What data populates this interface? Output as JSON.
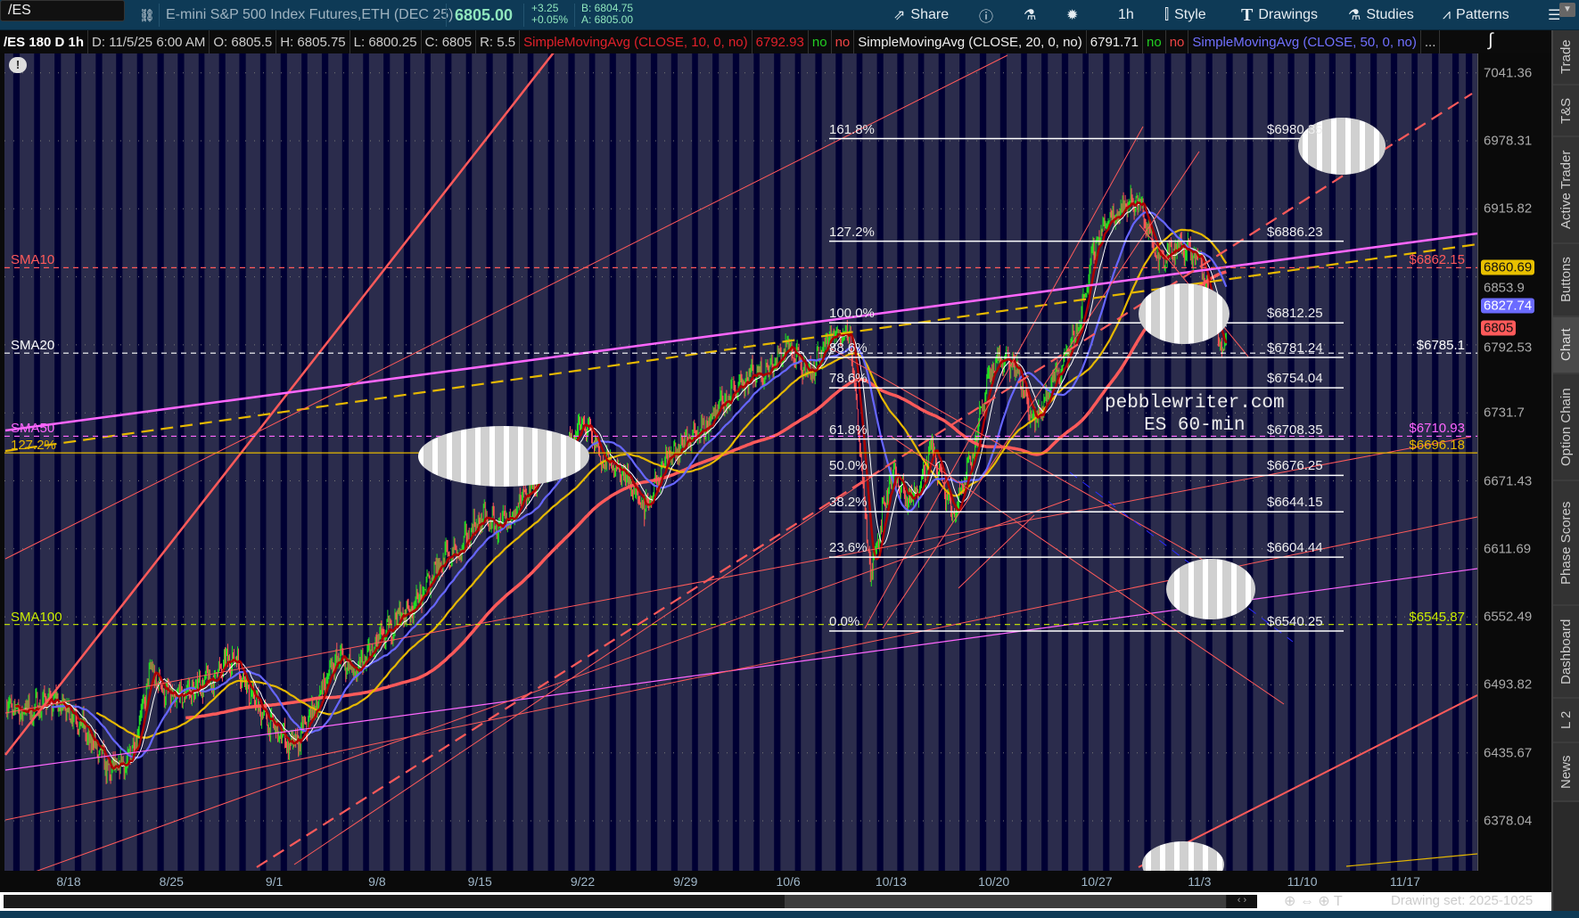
{
  "toolbar": {
    "symbol": "/ES",
    "description": "E-mini S&P 500 Index Futures,ETH (DEC 25)",
    "last": "6805.00",
    "change": "+3.25",
    "change_pct": "+0.05%",
    "bid": "B: 6804.75",
    "ask": "A: 6805.00",
    "share": "Share",
    "timeframe": "1h",
    "style": "Style",
    "drawings": "Drawings",
    "studies": "Studies",
    "patterns": "Patterns"
  },
  "infobar": {
    "title": "/ES 180 D 1h",
    "date": "D: 11/5/25 6:00 AM",
    "open": "O: 6805.5",
    "high": "H: 6805.75",
    "low": "L: 6800.25",
    "close": "C: 6805",
    "range": "R: 5.5",
    "sma10": "SimpleMovingAvg (CLOSE, 10, 0, no)",
    "sma10_val": "6792.93",
    "sma20": "SimpleMovingAvg (CLOSE, 20, 0, no)",
    "sma20_val": "6791.71",
    "sma50": "SimpleMovingAvg (CLOSE, 50, 0, no)",
    "no": "no",
    "more": "..."
  },
  "price_axis": {
    "labels": [
      "7041.36",
      "6978.31",
      "6915.82",
      "6853.9",
      "6792.53",
      "6731.7",
      "6671.43",
      "6611.69",
      "6552.49",
      "6493.82",
      "6435.67",
      "6378.04"
    ],
    "badges": [
      {
        "text": "6860.69",
        "price": 6860.69,
        "color": "#e8c000"
      },
      {
        "text": "6827.74",
        "price": 6827.74,
        "color": "#6b6bff"
      },
      {
        "text": "6805",
        "price": 6805,
        "color": "#ff5a5a"
      }
    ],
    "scale": "log"
  },
  "date_axis": [
    "8/18",
    "8/25",
    "9/1",
    "9/8",
    "9/15",
    "9/22",
    "9/29",
    "10/6",
    "10/13",
    "10/20",
    "10/27",
    "11/3",
    "11/10",
    "11/17"
  ],
  "side_tabs": [
    "Trade",
    "T&S",
    "Active Trader",
    "Buttons",
    "Chart",
    "Option Chain",
    "Phase Scores",
    "Dashboard",
    "L 2",
    "News"
  ],
  "selected_tab": "Chart",
  "drawing_set": "Drawing set: 2025-1025",
  "watermark": [
    "pebblewriter.com",
    "ES 60-min"
  ],
  "fib_levels": [
    {
      "pct": "161.8%",
      "label": "$6980.35",
      "price": 6980.35
    },
    {
      "pct": "127.2%",
      "label": "$6886.23",
      "price": 6886.23
    },
    {
      "pct": "100.0%",
      "label": "$6812.25",
      "price": 6812.25
    },
    {
      "pct": "88.6%",
      "label": "$6781.24",
      "price": 6781.24
    },
    {
      "pct": "78.6%",
      "label": "$6754.04",
      "price": 6754.04
    },
    {
      "pct": "61.8%",
      "label": "$6708.35",
      "price": 6708.35
    },
    {
      "pct": "50.0%",
      "label": "$6676.25",
      "price": 6676.25
    },
    {
      "pct": "38.2%",
      "label": "$6644.15",
      "price": 6644.15
    },
    {
      "pct": "23.6%",
      "label": "$6604.44",
      "price": 6604.44
    },
    {
      "pct": "0.0%",
      "label": "$6540.25",
      "price": 6540.25
    }
  ],
  "hlines": [
    {
      "left": "SMA10",
      "right": "$6862.15",
      "price": 6862.15,
      "color": "#ff5a5a",
      "dash": true
    },
    {
      "left": "SMA20",
      "right": "$6785.1",
      "price": 6785.1,
      "color": "#ffffff",
      "dash": true
    },
    {
      "left": "SMA50",
      "right": "$6710.93",
      "price": 6710.93,
      "color": "#ff66ff",
      "dash": true
    },
    {
      "left": "127.2%",
      "right": "$6696.18",
      "price": 6696.18,
      "color": "#e6b800",
      "dash": false
    },
    {
      "left": "SMA100",
      "right": "$6545.87",
      "price": 6545.87,
      "color": "#ccee00",
      "dash": true
    }
  ],
  "colors": {
    "up": "#22dd22",
    "down": "#ff5555",
    "sma10": "#aa0000",
    "sma20": "#ffffff",
    "sma50": "#6666ff",
    "sma100": "#e6b800",
    "sma200": "#ff5a5a"
  },
  "chart_data": {
    "type": "candlestick",
    "interval": "1h",
    "scale": "log",
    "daily_close": [
      [
        "8/13",
        6475
      ],
      [
        "8/14",
        6470
      ],
      [
        "8/15",
        6480
      ],
      [
        "8/18",
        6475
      ],
      [
        "8/19",
        6450
      ],
      [
        "8/20",
        6420
      ],
      [
        "8/21",
        6430
      ],
      [
        "8/22",
        6505
      ],
      [
        "8/25",
        6480
      ],
      [
        "8/26",
        6490
      ],
      [
        "8/27",
        6500
      ],
      [
        "8/28",
        6520
      ],
      [
        "8/29",
        6480
      ],
      [
        "9/1",
        6455
      ],
      [
        "9/2",
        6440
      ],
      [
        "9/3",
        6475
      ],
      [
        "9/4",
        6520
      ],
      [
        "9/5",
        6505
      ],
      [
        "9/8",
        6530
      ],
      [
        "9/9",
        6550
      ],
      [
        "9/10",
        6565
      ],
      [
        "9/11",
        6600
      ],
      [
        "9/12",
        6610
      ],
      [
        "9/15",
        6640
      ],
      [
        "9/16",
        6630
      ],
      [
        "9/17",
        6650
      ],
      [
        "9/18",
        6680
      ],
      [
        "9/19",
        6690
      ],
      [
        "9/22",
        6725
      ],
      [
        "9/23",
        6690
      ],
      [
        "9/24",
        6680
      ],
      [
        "9/25",
        6645
      ],
      [
        "9/26",
        6690
      ],
      [
        "9/29",
        6705
      ],
      [
        "9/30",
        6720
      ],
      [
        "10/1",
        6745
      ],
      [
        "10/2",
        6765
      ],
      [
        "10/3",
        6770
      ],
      [
        "10/6",
        6790
      ],
      [
        "10/7",
        6765
      ],
      [
        "10/8",
        6800
      ],
      [
        "10/9",
        6805
      ],
      [
        "10/10",
        6590
      ],
      [
        "10/13",
        6680
      ],
      [
        "10/14",
        6650
      ],
      [
        "10/15",
        6700
      ],
      [
        "10/16",
        6640
      ],
      [
        "10/17",
        6700
      ],
      [
        "10/20",
        6780
      ],
      [
        "10/21",
        6775
      ],
      [
        "10/22",
        6720
      ],
      [
        "10/23",
        6765
      ],
      [
        "10/24",
        6800
      ],
      [
        "10/27",
        6890
      ],
      [
        "10/28",
        6915
      ],
      [
        "10/29",
        6925
      ],
      [
        "10/30",
        6870
      ],
      [
        "10/31",
        6880
      ],
      [
        "11/3",
        6870
      ],
      [
        "11/4",
        6795
      ],
      [
        "11/5",
        6805
      ]
    ]
  }
}
